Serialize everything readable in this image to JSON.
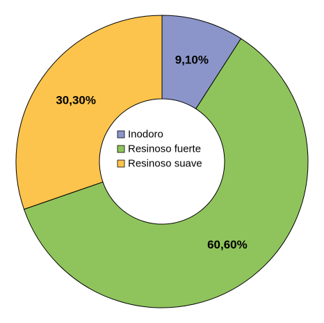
{
  "chart_data": {
    "type": "pie",
    "variant": "donut",
    "title": "",
    "categories": [
      "Inodoro",
      "Resinoso fuerte",
      "Resinoso suave"
    ],
    "values": [
      9.1,
      60.6,
      30.3
    ],
    "labels": [
      "9,10%",
      "60,60%",
      "30,30%"
    ],
    "colors": [
      "#8b95c9",
      "#8fc45c",
      "#fcc44c"
    ],
    "legend": {
      "position": "center",
      "entries": [
        "Inodoro",
        "Resinoso fuerte",
        "Resinoso suave"
      ]
    }
  }
}
